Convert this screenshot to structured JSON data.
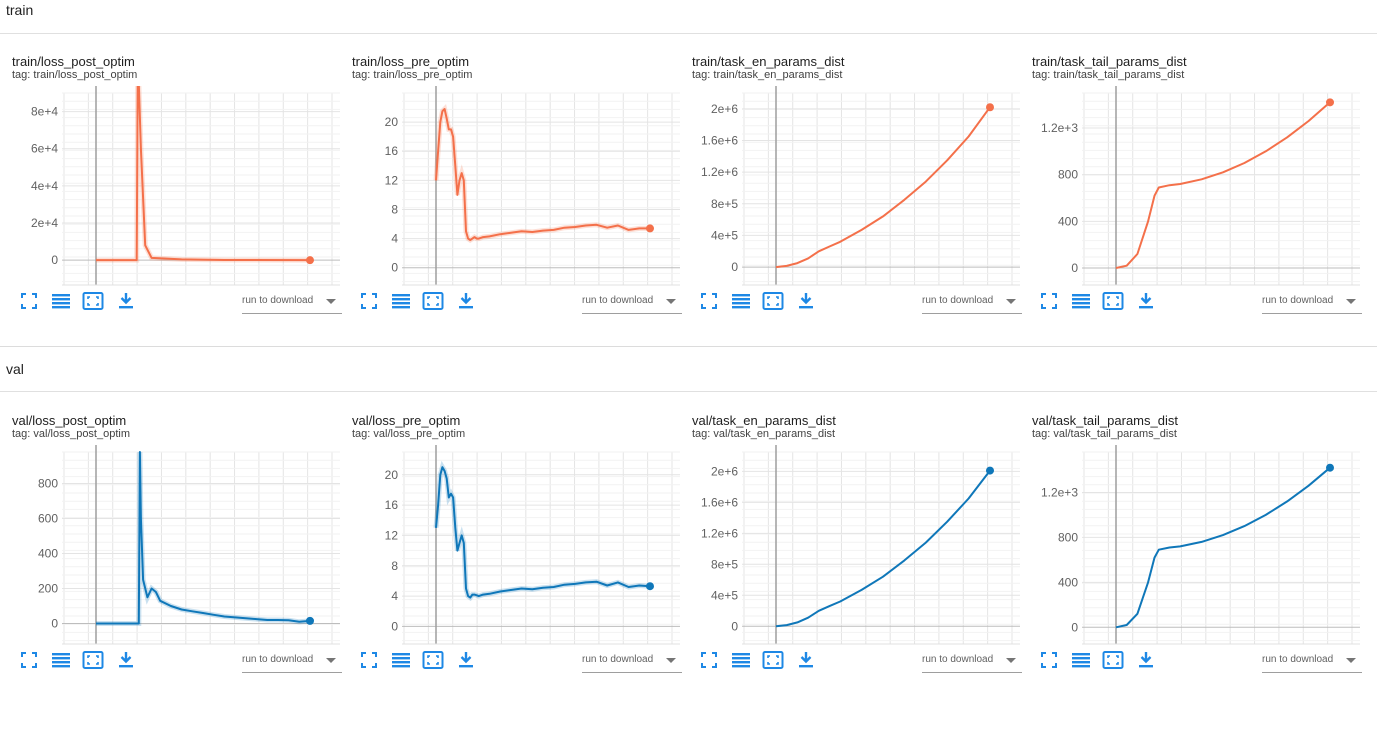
{
  "sections": [
    {
      "title": "train",
      "color": "#f4704a",
      "cards": [
        {
          "title": "train/loss_post_optim",
          "tag": "tag: train/loss_post_optim"
        },
        {
          "title": "train/loss_pre_optim",
          "tag": "tag: train/loss_pre_optim"
        },
        {
          "title": "train/task_en_params_dist",
          "tag": "tag: train/task_en_params_dist"
        },
        {
          "title": "train/task_tail_params_dist",
          "tag": "tag: train/task_tail_params_dist"
        }
      ]
    },
    {
      "title": "val",
      "color": "#0f77b9",
      "cards": [
        {
          "title": "val/loss_post_optim",
          "tag": "tag: val/loss_post_optim"
        },
        {
          "title": "val/loss_pre_optim",
          "tag": "tag: val/loss_pre_optim"
        },
        {
          "title": "val/task_en_params_dist",
          "tag": "tag: val/task_en_params_dist"
        },
        {
          "title": "val/task_tail_params_dist",
          "tag": "tag: val/task_tail_params_dist"
        }
      ]
    }
  ],
  "toolbar": {
    "download_label": "run to download",
    "icons": [
      "fit-screen-icon",
      "data-table-icon",
      "fit-domain-icon",
      "download-icon"
    ]
  },
  "chart_data": [
    {
      "type": "line",
      "ytick_labels": [
        "0",
        "2e+4",
        "4e+4",
        "6e+4",
        "8e+4"
      ],
      "yticks": [
        0,
        20000,
        40000,
        60000,
        80000
      ],
      "ylim": [
        -8000,
        90000
      ],
      "series": [
        {
          "x": [
            0,
            10,
            19,
            19.5,
            20,
            21,
            23,
            26,
            40,
            60,
            100
          ],
          "y": [
            0,
            0,
            0,
            95000,
            95000,
            60000,
            8000,
            1200,
            400,
            100,
            0
          ]
        }
      ],
      "smooth_light": true,
      "end_dot": true
    },
    {
      "type": "line",
      "ytick_labels": [
        "0",
        "4",
        "8",
        "12",
        "16",
        "20"
      ],
      "yticks": [
        0,
        4,
        8,
        12,
        16,
        20
      ],
      "ylim": [
        -1,
        24
      ],
      "series": [
        {
          "x": [
            0,
            1,
            2,
            3,
            4,
            5,
            6,
            7,
            8,
            9,
            10,
            11,
            12,
            13,
            14,
            15,
            16,
            17,
            18,
            19,
            20,
            22,
            25,
            30,
            35,
            40,
            45,
            50,
            55,
            60,
            65,
            70,
            75,
            80,
            85,
            90,
            95,
            100
          ],
          "y": [
            12,
            16,
            20,
            21.5,
            21.8,
            20.5,
            19,
            19,
            18,
            14,
            10,
            12,
            13,
            12,
            5,
            4,
            3.8,
            4,
            4.2,
            4,
            4,
            4.2,
            4.3,
            4.6,
            4.8,
            5,
            4.9,
            5.1,
            5.2,
            5.5,
            5.6,
            5.8,
            5.9,
            5.5,
            5.8,
            5.2,
            5.4,
            5.4
          ]
        }
      ],
      "smooth_light": true,
      "end_dot": true
    },
    {
      "type": "line",
      "ytick_labels": [
        "0",
        "4e+5",
        "8e+5",
        "1.2e+6",
        "1.6e+6",
        "2e+6"
      ],
      "yticks": [
        0,
        400000,
        800000,
        1200000,
        1600000,
        2000000
      ],
      "ylim": [
        -100000,
        2200000
      ],
      "series": [
        {
          "x": [
            0,
            5,
            10,
            15,
            20,
            25,
            30,
            40,
            50,
            60,
            70,
            80,
            90,
            100
          ],
          "y": [
            0,
            15000,
            50000,
            110000,
            200000,
            260000,
            320000,
            470000,
            640000,
            850000,
            1080000,
            1350000,
            1650000,
            2020000
          ]
        }
      ],
      "smooth_light": false,
      "end_dot": true
    },
    {
      "type": "line",
      "ytick_labels": [
        "0",
        "400",
        "800",
        "1.2e+3"
      ],
      "yticks": [
        0,
        400,
        800,
        1200
      ],
      "ylim": [
        -60,
        1500
      ],
      "series": [
        {
          "x": [
            0,
            5,
            10,
            15,
            18,
            20,
            25,
            30,
            40,
            50,
            60,
            70,
            80,
            90,
            100
          ],
          "y": [
            0,
            20,
            120,
            400,
            620,
            690,
            710,
            720,
            760,
            820,
            900,
            1000,
            1120,
            1260,
            1420
          ]
        }
      ],
      "smooth_light": false,
      "end_dot": true
    },
    {
      "type": "line",
      "ytick_labels": [
        "0",
        "200",
        "400",
        "600",
        "800"
      ],
      "yticks": [
        0,
        200,
        400,
        600,
        800
      ],
      "ylim": [
        -60,
        980
      ],
      "series": [
        {
          "x": [
            0,
            5,
            10,
            15,
            20,
            20.5,
            21,
            22,
            24,
            26,
            28,
            30,
            35,
            40,
            45,
            50,
            55,
            60,
            65,
            70,
            75,
            80,
            85,
            90,
            95,
            100
          ],
          "y": [
            0,
            0,
            0,
            0,
            0,
            980,
            600,
            250,
            150,
            200,
            180,
            130,
            100,
            80,
            70,
            60,
            50,
            40,
            35,
            30,
            25,
            20,
            20,
            18,
            10,
            15
          ]
        }
      ],
      "smooth_light": true,
      "end_dot": true
    },
    {
      "type": "line",
      "ytick_labels": [
        "0",
        "4",
        "8",
        "12",
        "16",
        "20"
      ],
      "yticks": [
        0,
        4,
        8,
        12,
        16,
        20
      ],
      "ylim": [
        -1,
        23
      ],
      "series": [
        {
          "x": [
            0,
            1,
            2,
            3,
            4,
            5,
            6,
            7,
            8,
            9,
            10,
            11,
            12,
            13,
            14,
            15,
            16,
            17,
            18,
            19,
            20,
            22,
            25,
            30,
            35,
            40,
            45,
            50,
            55,
            60,
            65,
            70,
            75,
            80,
            85,
            90,
            95,
            100
          ],
          "y": [
            13,
            16,
            20,
            21,
            20.5,
            19.5,
            17,
            17.5,
            17,
            13,
            10,
            11,
            12,
            11,
            5,
            4,
            3.8,
            4.2,
            4.2,
            4.1,
            4,
            4.2,
            4.3,
            4.6,
            4.8,
            5,
            4.9,
            5.1,
            5.2,
            5.5,
            5.6,
            5.8,
            5.9,
            5.4,
            5.8,
            5.2,
            5.4,
            5.3
          ]
        }
      ],
      "smooth_light": true,
      "end_dot": true
    },
    {
      "type": "line",
      "ytick_labels": [
        "0",
        "4e+5",
        "8e+5",
        "1.2e+6",
        "1.6e+6",
        "2e+6"
      ],
      "yticks": [
        0,
        400000,
        800000,
        1200000,
        1600000,
        2000000
      ],
      "ylim": [
        -100000,
        2250000
      ],
      "series": [
        {
          "x": [
            0,
            5,
            10,
            15,
            20,
            25,
            30,
            40,
            50,
            60,
            70,
            80,
            90,
            100
          ],
          "y": [
            0,
            15000,
            50000,
            110000,
            200000,
            260000,
            320000,
            470000,
            640000,
            850000,
            1080000,
            1350000,
            1650000,
            2010000
          ]
        }
      ],
      "smooth_light": false,
      "end_dot": true
    },
    {
      "type": "line",
      "ytick_labels": [
        "0",
        "400",
        "800",
        "1.2e+3"
      ],
      "yticks": [
        0,
        400,
        800,
        1200
      ],
      "ylim": [
        -60,
        1560
      ],
      "series": [
        {
          "x": [
            0,
            5,
            10,
            15,
            18,
            20,
            25,
            30,
            40,
            50,
            60,
            70,
            80,
            90,
            100
          ],
          "y": [
            0,
            20,
            120,
            400,
            620,
            690,
            710,
            720,
            760,
            820,
            900,
            1000,
            1120,
            1260,
            1420
          ]
        }
      ],
      "smooth_light": false,
      "end_dot": true
    }
  ]
}
